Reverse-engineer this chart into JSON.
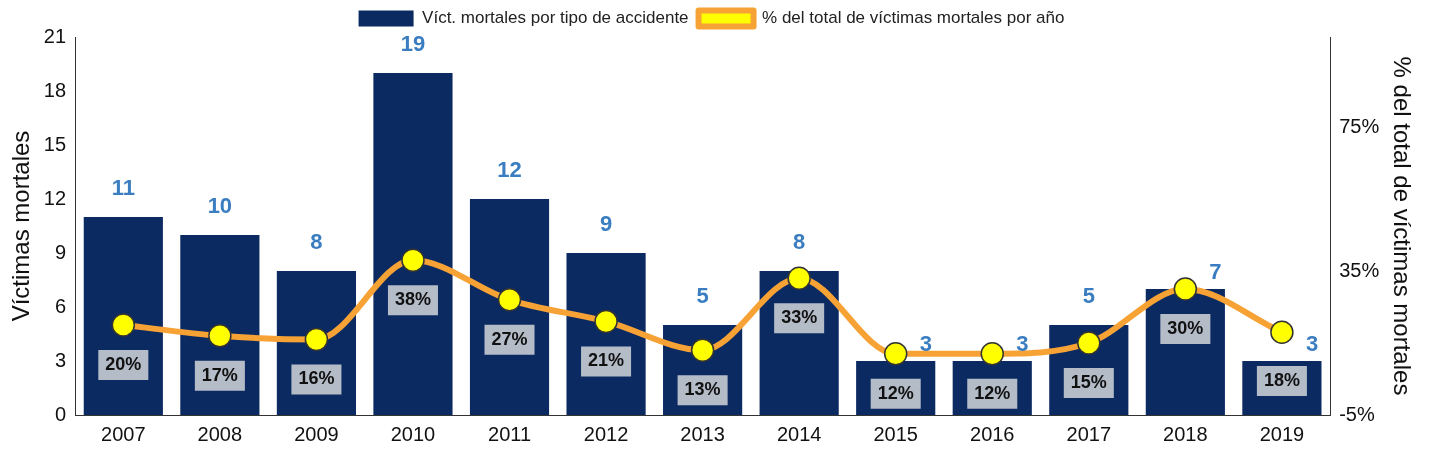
{
  "chart_data": {
    "type": "bar",
    "categories": [
      "2007",
      "2008",
      "2009",
      "2010",
      "2011",
      "2012",
      "2013",
      "2014",
      "2015",
      "2016",
      "2017",
      "2018",
      "2019"
    ],
    "series": [
      {
        "name": "Víct. mortales por tipo de accidente",
        "color": "#0c2a62",
        "values": [
          11,
          10,
          8,
          19,
          12,
          9,
          5,
          8,
          3,
          3,
          5,
          7,
          3
        ]
      },
      {
        "name": "% del total de víctimas mortales por año",
        "type": "line",
        "axis": "y2",
        "color": "#f7a234",
        "values": [
          20,
          17,
          16,
          38,
          27,
          21,
          13,
          33,
          12,
          12,
          15,
          30,
          18
        ],
        "value_labels": [
          "20%",
          "17%",
          "16%",
          "38%",
          "27%",
          "21%",
          "13%",
          "33%",
          "12%",
          "12%",
          "15%",
          "30%",
          "18%"
        ]
      }
    ],
    "ylabel": "Víctimas mortales",
    "y2label": "% del total de víctimas mortales",
    "ylim": [
      0,
      21
    ],
    "yticks": [
      0,
      3,
      6,
      9,
      12,
      15,
      18,
      21
    ],
    "y2lim": [
      -5,
      100
    ],
    "y2ticks": [
      {
        "value": -5,
        "label": "-5%"
      },
      {
        "value": 35,
        "label": "35%"
      },
      {
        "value": 75,
        "label": "75%"
      }
    ],
    "data_labels": true,
    "legend": "top",
    "grid": false,
    "marker": "circle"
  }
}
